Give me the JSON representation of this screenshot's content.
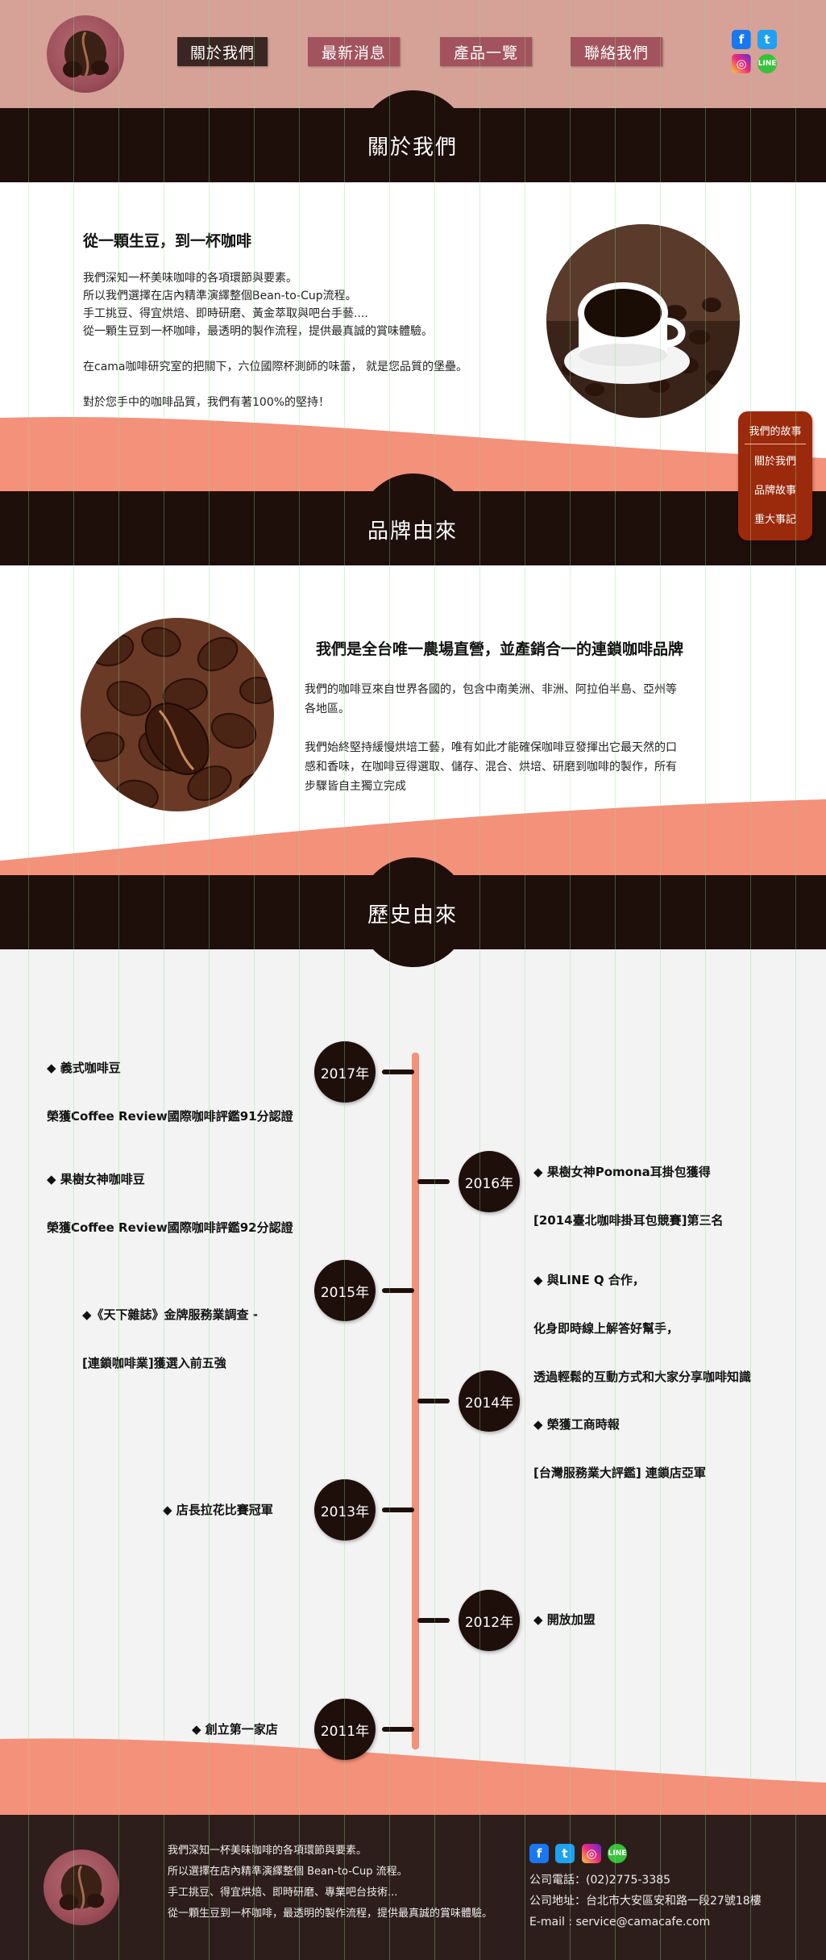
{
  "nav": {
    "items": [
      "關於我們",
      "最新消息",
      "產品一覽",
      "聯絡我們"
    ],
    "active_index": 0
  },
  "social": {
    "icons": [
      "facebook-icon",
      "twitter-icon",
      "instagram-icon",
      "line-icon"
    ]
  },
  "about": {
    "band_title": "關於我們",
    "heading": "從一顆生豆，到一杯咖啡",
    "lines": [
      "我們深知一杯美味咖啡的各項環節與要素。",
      "所以我們選擇在店內精準演繹整個Bean-to-Cup流程。",
      "手工挑豆、得宜烘焙、即時研磨、黃金萃取與吧台手藝....",
      "從一顆生豆到一杯咖啡，最透明的製作流程，提供最真誠的賞味體驗。",
      "在cama咖啡研究室的把關下，六位國際杯測師的味蕾， 就是您品質的堡壘。",
      "對於您手中的咖啡品質，我們有著100%的堅持！"
    ]
  },
  "side_menu": {
    "title": "我們的故事",
    "items": [
      "關於我們",
      "品牌故事",
      "重大事記"
    ]
  },
  "brand": {
    "band_title": "品牌由來",
    "heading": "我們是全台唯一農場直營，並產銷合一的連鎖咖啡品牌",
    "lines": [
      "我們的咖啡豆來自世界各國的，包含中南美洲、非洲、阿拉伯半島、亞州等",
      "各地區。",
      "我們始終堅持緩慢烘培工藝，唯有如此才能確保咖啡豆發揮出它最天然的口",
      "感和香味，在咖啡豆得選取、儲存、混合、烘培、研磨到咖啡的製作，所有",
      "步驟皆自主獨立完成"
    ]
  },
  "history": {
    "band_title": "歷史由來",
    "years": [
      "2017年",
      "2016年",
      "2015年",
      "2014年",
      "2013年",
      "2012年",
      "2011年"
    ],
    "events": {
      "y2017": [
        "◆ 義式咖啡豆",
        "榮獲Coffee Review國際咖啡評鑑91分認證",
        "◆ 果樹女神咖啡豆",
        "榮獲Coffee Review國際咖啡評鑑92分認證"
      ],
      "y2016": [
        "◆ 果樹女神Pomona耳掛包獲得",
        "[2014臺北咖啡掛耳包競賽]第三名",
        "◆ 與LINE Q 合作，",
        "化身即時線上解答好幫手，",
        "透過輕鬆的互動方式和大家分享咖啡知識"
      ],
      "y2015": [
        "◆《天下雜誌》金牌服務業調查 -",
        "[連鎖咖啡業]獲選入前五強"
      ],
      "y2014": [
        "◆ 榮獲工商時報",
        "[台灣服務業大評鑑] 連鎖店亞軍"
      ],
      "y2013": "◆ 店長拉花比賽冠軍",
      "y2012": "◆ 開放加盟",
      "y2011": "◆ 創立第一家店"
    }
  },
  "footer": {
    "about_lines": [
      "我們深知一杯美味咖啡的各項環節與要素。",
      "所以選擇在店內精準演繹整個 Bean-to-Cup 流程。",
      "手工挑豆、得宜烘焙、即時研磨、專業吧台技術...",
      "從一顆生豆到一杯咖啡，最透明的製作流程，提供最真誠的賞味體驗。"
    ],
    "phone": "公司電話：(02)2775-3385",
    "address": "公司地址：台北市大安區安和路一段27號18樓",
    "email": "E-mail : service@camacafe.com"
  },
  "colors": {
    "header_bg": "#d6a197",
    "band_bg": "#1e0f0b",
    "salmon": "#f4917b",
    "side_menu_bg": "#9b2a0c",
    "nav_btn": "#a3535e"
  }
}
